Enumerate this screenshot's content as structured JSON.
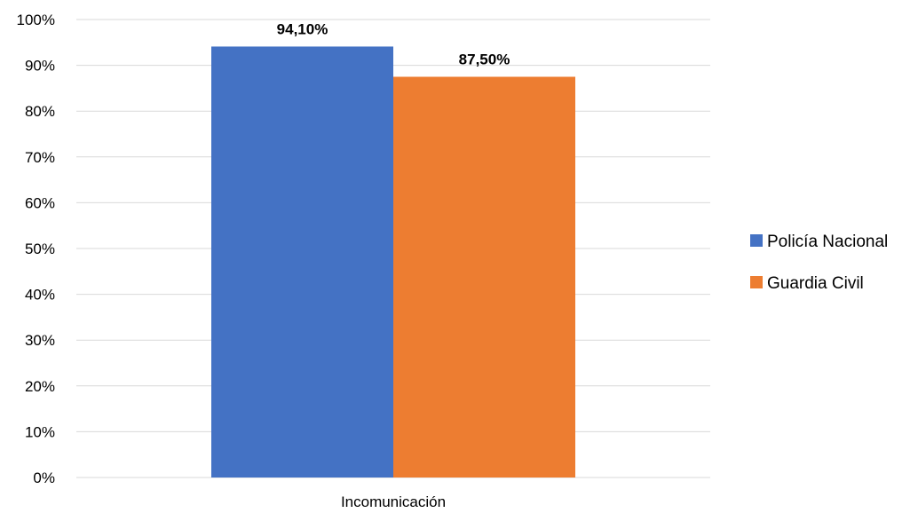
{
  "chart_data": {
    "type": "bar",
    "categories": [
      "Incomunicación"
    ],
    "series": [
      {
        "name": "Policía Nacional",
        "values": [
          94.1
        ],
        "color": "#4472c4",
        "label": "94,10%"
      },
      {
        "name": "Guardia Civil",
        "values": [
          87.5
        ],
        "color": "#ed7d31",
        "label": "87,50%"
      }
    ],
    "ylim": [
      0,
      100
    ],
    "yticks": [
      {
        "value": 0,
        "label": "0%"
      },
      {
        "value": 10,
        "label": "10%"
      },
      {
        "value": 20,
        "label": "20%"
      },
      {
        "value": 30,
        "label": "30%"
      },
      {
        "value": 40,
        "label": "40%"
      },
      {
        "value": 50,
        "label": "50%"
      },
      {
        "value": 60,
        "label": "60%"
      },
      {
        "value": 70,
        "label": "70%"
      },
      {
        "value": 80,
        "label": "80%"
      },
      {
        "value": 90,
        "label": "90%"
      },
      {
        "value": 100,
        "label": "100%"
      }
    ],
    "grid": true,
    "legend_position": "right"
  }
}
